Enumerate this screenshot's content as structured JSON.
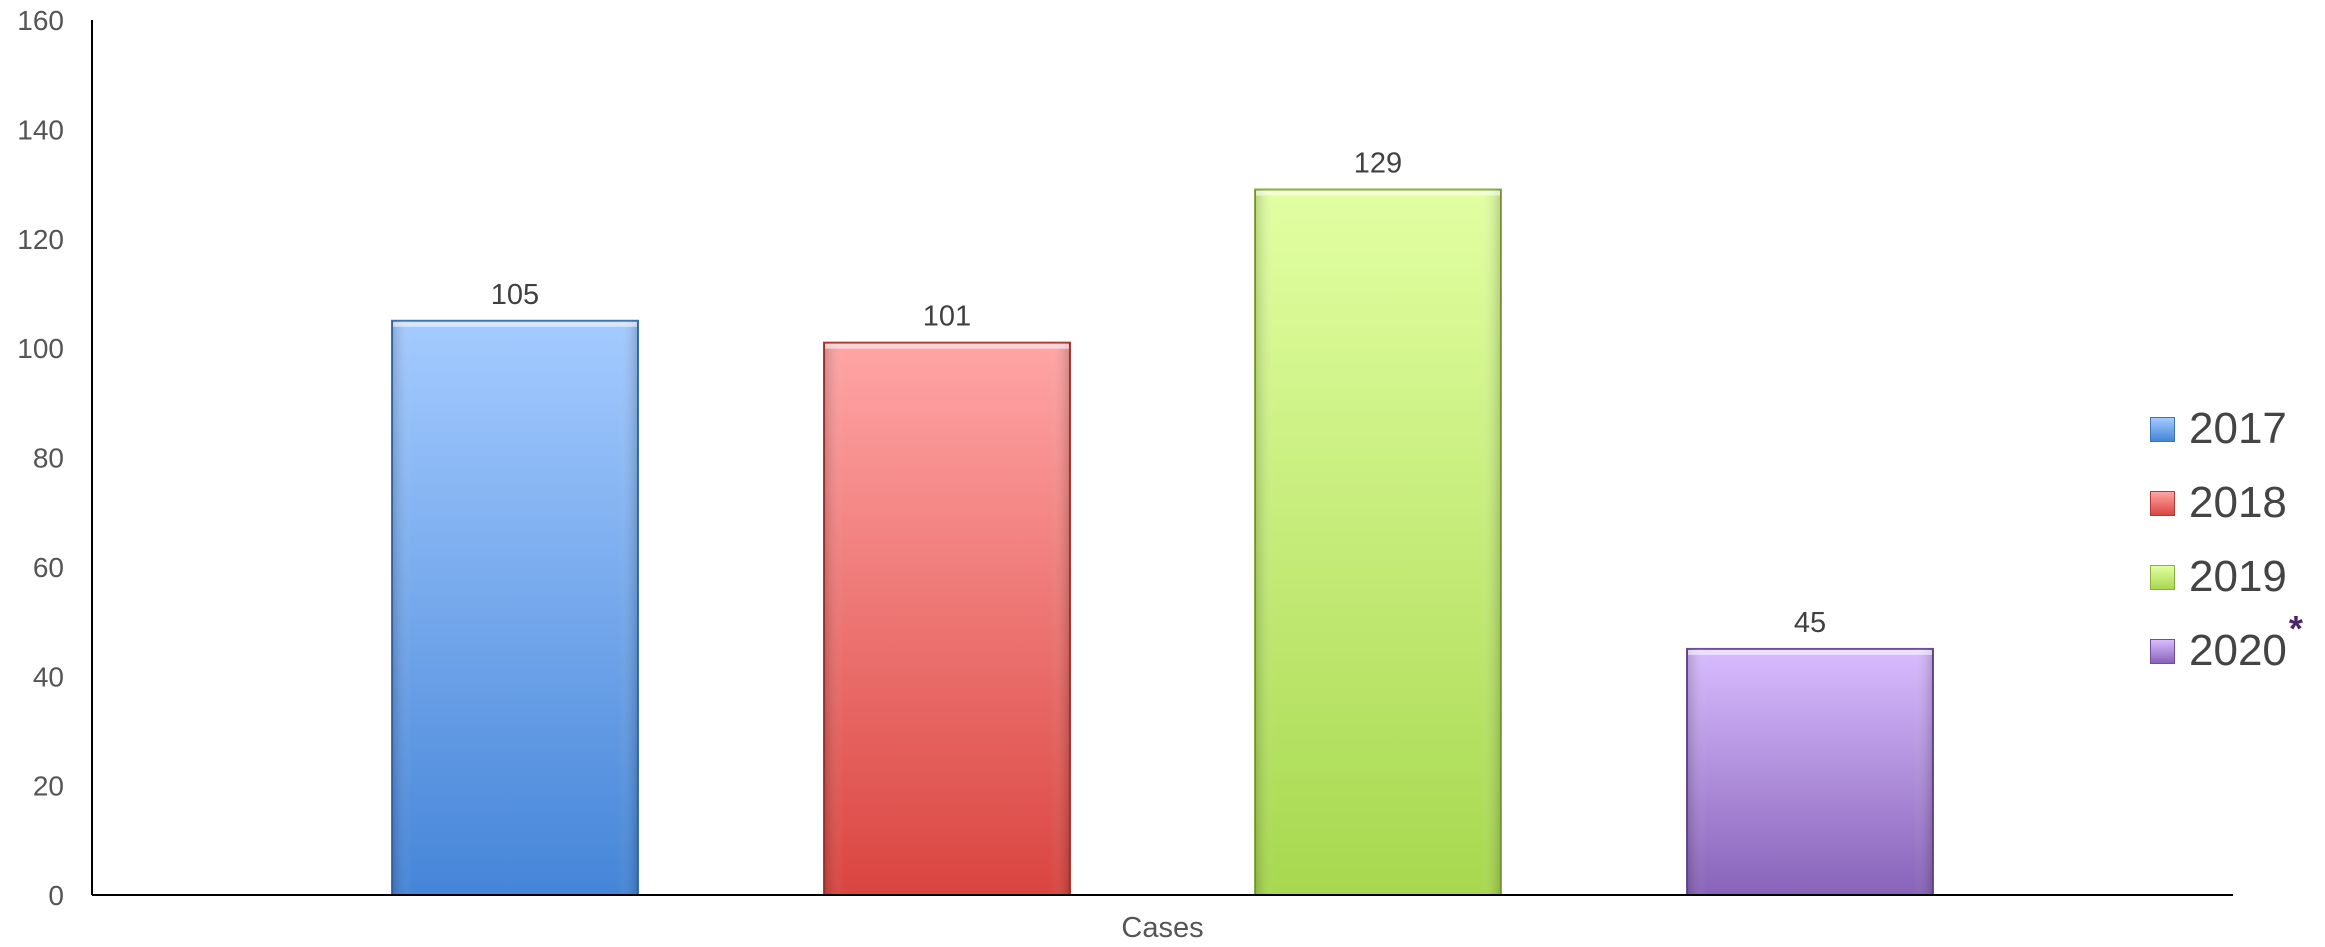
{
  "chart_data": {
    "type": "bar",
    "categories": [
      "Cases"
    ],
    "series": [
      {
        "name": "2017",
        "values": [
          105
        ],
        "color_top": "#a4cbff",
        "color_bottom": "#4585d8",
        "stroke": "#3f73b8"
      },
      {
        "name": "2018",
        "values": [
          101
        ],
        "color_top": "#ffa5a5",
        "color_bottom": "#da4540",
        "stroke": "#b03b37"
      },
      {
        "name": "2019",
        "values": [
          129
        ],
        "color_top": "#e2ffa2",
        "color_bottom": "#a7d84f",
        "stroke": "#8aae3f"
      },
      {
        "name": "2020",
        "values": [
          45
        ],
        "color_top": "#d8bcff",
        "color_bottom": "#8863b9",
        "stroke": "#6f4f99",
        "note": "*"
      }
    ],
    "xlabel": "",
    "ylabel": "",
    "ylim": [
      0,
      160
    ],
    "yticks": [
      0,
      20,
      40,
      60,
      80,
      100,
      120,
      140,
      160
    ],
    "data_labels": true,
    "grid": false,
    "legend_position": "right",
    "note_color": "#4b2768"
  }
}
